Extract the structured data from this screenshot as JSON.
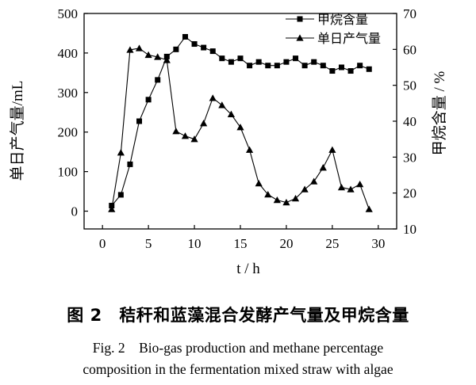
{
  "chart_data": {
    "type": "line",
    "x": [
      1,
      2,
      3,
      4,
      5,
      6,
      7,
      8,
      9,
      10,
      11,
      12,
      13,
      14,
      15,
      16,
      17,
      18,
      19,
      20,
      21,
      22,
      23,
      24,
      25,
      26,
      27,
      28,
      29
    ],
    "series": [
      {
        "name": "甲烷含量",
        "axis": "right",
        "marker": "square",
        "values": [
          16.5,
          19.5,
          28,
          40,
          46,
          51.5,
          58,
          60,
          63.5,
          61.5,
          60.5,
          59.5,
          57.5,
          56.5,
          57.5,
          55.5,
          56.5,
          55.5,
          55.5,
          56.5,
          57.5,
          55.5,
          56.5,
          55.5,
          54,
          55,
          54,
          55.5,
          54.5
        ]
      },
      {
        "name": "单日产气量",
        "axis": "left",
        "marker": "triangle",
        "values": [
          5,
          148,
          408,
          412,
          395,
          390,
          382,
          202,
          190,
          182,
          222,
          286,
          268,
          245,
          212,
          155,
          70,
          42,
          28,
          22,
          32,
          55,
          75,
          110,
          155,
          60,
          55,
          68,
          5
        ]
      }
    ],
    "xlabel": "t / h",
    "xlim": [
      -2,
      32
    ],
    "xticks": [
      "0",
      "5",
      "10",
      "15",
      "20",
      "25",
      "30"
    ],
    "ylabel_left": "单日产气量/mL",
    "ylim_left": [
      -45,
      500
    ],
    "yticks_left": [
      "0",
      "100",
      "200",
      "300",
      "400",
      "500"
    ],
    "ylabel_right": "甲烷含量 / %",
    "ylim_right": [
      10,
      70
    ],
    "yticks_right": [
      "10",
      "20",
      "30",
      "40",
      "50",
      "60",
      "70"
    ],
    "legend": [
      "甲烷含量",
      "单日产气量"
    ],
    "legend_position": "top-right",
    "grid": false
  },
  "caption": {
    "cn": "图 2　秸秆和蓝藻混合发酵产气量及甲烷含量",
    "en_line1": "Fig. 2　Bio-gas production and methane percentage",
    "en_line2": "composition in the fermentation mixed straw with algae"
  }
}
